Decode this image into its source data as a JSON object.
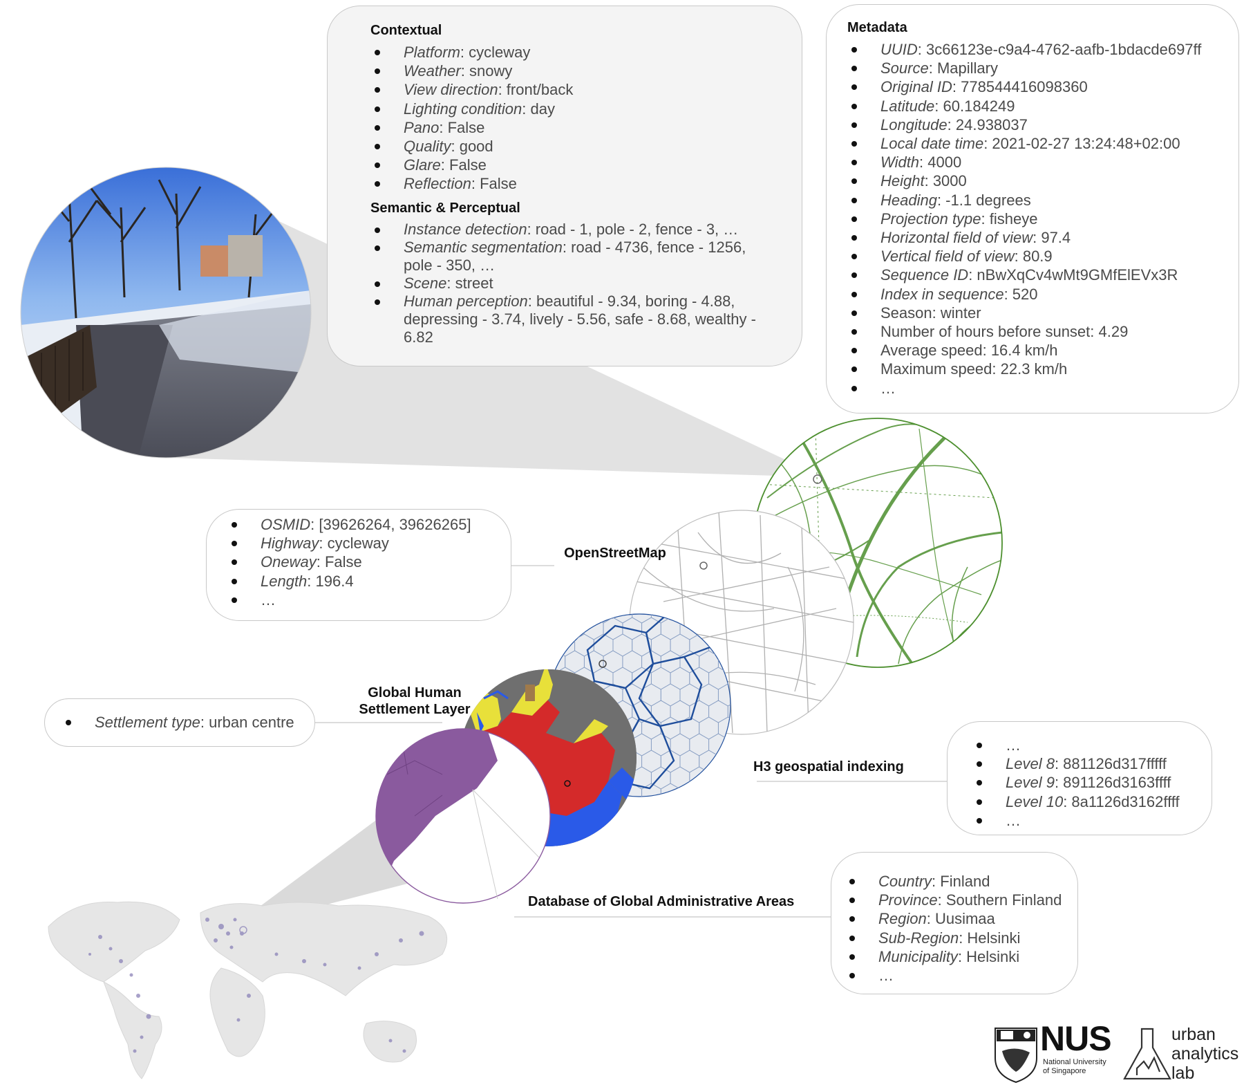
{
  "contextual": {
    "title": "Contextual",
    "items": [
      {
        "key": "Platform",
        "value": ": cycleway"
      },
      {
        "key": "Weather",
        "value": ": snowy"
      },
      {
        "key": "View direction",
        "value": ": front/back"
      },
      {
        "key": "Lighting condition",
        "value": ": day"
      },
      {
        "key": "Pano",
        "value": ": False"
      },
      {
        "key": "Quality",
        "value": ": good"
      },
      {
        "key": "Glare",
        "value": ": False"
      },
      {
        "key": "Reflection",
        "value": ": False"
      }
    ]
  },
  "semantic": {
    "title": "Semantic & Perceptual",
    "items": [
      {
        "key": "Instance detection",
        "value": ": road - 1, pole - 2, fence - 3, …"
      },
      {
        "key": "Semantic segmentation",
        "value": ": road - 4736, fence - 1256, pole - 350, …"
      },
      {
        "key": "Scene",
        "value": ": street"
      },
      {
        "key": "Human perception",
        "value": ": beautiful - 9.34, boring - 4.88, depressing - 3.74, lively - 5.56, safe - 8.68, wealthy - 6.82"
      }
    ]
  },
  "metadata": {
    "title": "Metadata",
    "items": [
      {
        "key": "UUID",
        "value": ": 3c66123e-c9a4-4762-aafb-1bdacde697ff"
      },
      {
        "key": "Source",
        "value": ": Mapillary"
      },
      {
        "key": "Original ID",
        "value": ": 778544416098360"
      },
      {
        "key": "Latitude",
        "value": ": 60.184249"
      },
      {
        "key": "Longitude",
        "value": ": 24.938037"
      },
      {
        "key": "Local date time",
        "value": ": 2021-02-27 13:24:48+02:00"
      },
      {
        "key": "Width",
        "value": ": 4000"
      },
      {
        "key": "Height",
        "value": ": 3000"
      },
      {
        "key": "Heading",
        "value": ": -1.1 degrees"
      },
      {
        "key": "Projection type",
        "value": ": fisheye"
      },
      {
        "key": "Horizontal field of view",
        "value": ": 97.4"
      },
      {
        "key": "Vertical field of view",
        "value": ": 80.9"
      },
      {
        "key": "Sequence ID",
        "value": ": nBwXqCv4wMt9GMfElEVx3R"
      },
      {
        "key": "Index in sequence",
        "value": ": 520"
      },
      {
        "key": "",
        "value": "Season: winter"
      },
      {
        "key": "",
        "value": "Number of hours before sunset: 4.29"
      },
      {
        "key": "",
        "value": "Average speed: 16.4 km/h"
      },
      {
        "key": "",
        "value": "Maximum speed: 22.3 km/h"
      },
      {
        "key": "",
        "value": "…"
      }
    ]
  },
  "osm": {
    "label": "OpenStreetMap",
    "items": [
      {
        "key": "OSMID",
        "value": ": [39626264, 39626265]"
      },
      {
        "key": "Highway",
        "value": ": cycleway"
      },
      {
        "key": "Oneway",
        "value": ": False"
      },
      {
        "key": "Length",
        "value": ": 196.4"
      },
      {
        "key": "",
        "value": "…"
      }
    ]
  },
  "ghsl": {
    "label_line1": "Global Human",
    "label_line2": "Settlement Layer",
    "items": [
      {
        "key": "Settlement type",
        "value": ": urban centre"
      }
    ]
  },
  "h3": {
    "label": "H3 geospatial indexing",
    "items": [
      {
        "key": "",
        "value": "…"
      },
      {
        "key": "Level 8",
        "value": ": 881126d317fffff"
      },
      {
        "key": "Level 9",
        "value": ": 891126d3163ffff"
      },
      {
        "key": "Level 10",
        "value": ": 8a1126d3162ffff"
      },
      {
        "key": "",
        "value": "…"
      }
    ]
  },
  "gadm": {
    "label": "Database of Global Administrative Areas",
    "items": [
      {
        "key": "Country",
        "value": ": Finland"
      },
      {
        "key": "Province",
        "value": ": Southern Finland"
      },
      {
        "key": "Region",
        "value": ": Uusimaa"
      },
      {
        "key": "Sub-Region",
        "value": ": Helsinki"
      },
      {
        "key": "Municipality",
        "value": ": Helsinki"
      },
      {
        "key": "",
        "value": "…"
      }
    ]
  },
  "logos": {
    "nus_big": "NUS",
    "nus_line1": "National University",
    "nus_line2": "of Singapore",
    "ual_line1": "urban",
    "ual_line2": "analytics",
    "ual_line3": "lab"
  },
  "colors": {
    "osm_green": "#4c8f2e",
    "h3_blue": "#1f4e9c",
    "ghsl_red": "#d42a2a",
    "ghsl_yellow": "#e8e03a",
    "ghsl_blue": "#2a5ae8",
    "gadm_purple": "#8a5a9e",
    "nus_blue": "#1a2b5c",
    "nus_orange": "#ef7c00"
  }
}
